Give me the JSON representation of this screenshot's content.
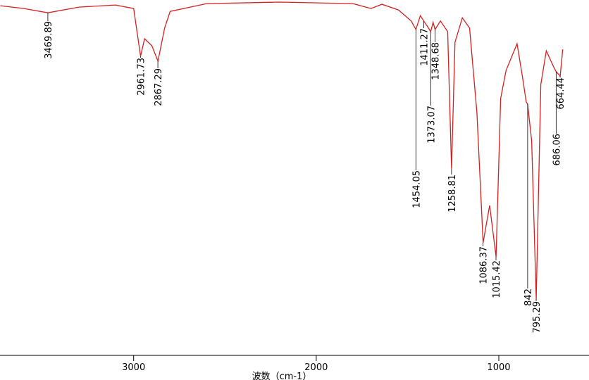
{
  "chart_data": {
    "type": "line",
    "x_label": "波数（cm-1）",
    "xlim": [
      3732,
      506
    ],
    "xticks": [
      3000,
      2000,
      1000
    ],
    "ylim": [
      0,
      100
    ],
    "series": [
      {
        "color": "#d42020",
        "x": [
          3730,
          3600,
          3470,
          3300,
          3100,
          3000,
          2962,
          2940,
          2900,
          2867,
          2830,
          2800,
          2600,
          2200,
          1800,
          1700,
          1640,
          1550,
          1480,
          1454,
          1430,
          1411,
          1390,
          1373,
          1360,
          1349,
          1320,
          1280,
          1259,
          1240,
          1200,
          1160,
          1120,
          1086,
          1050,
          1015,
          990,
          960,
          900,
          870,
          850,
          842,
          820,
          795,
          770,
          740,
          700,
          686,
          664,
          650
        ],
        "values": [
          98.4,
          97.6,
          96.4,
          98,
          98.6,
          97.6,
          84.2,
          89.1,
          87.1,
          82.8,
          92.1,
          96.8,
          99,
          99.4,
          99,
          97.6,
          98.8,
          97.2,
          94.1,
          91.7,
          95.6,
          94.1,
          92.5,
          91.1,
          93.7,
          91.7,
          94.1,
          91.1,
          52.5,
          88.1,
          95,
          92.1,
          68.3,
          31.7,
          42.2,
          27.7,
          72.3,
          80.2,
          87.7,
          78.2,
          71.3,
          70.7,
          60.4,
          15.8,
          76.2,
          85.7,
          81.2,
          79.8,
          78.6,
          86.1
        ]
      }
    ],
    "peaks": [
      3469.89,
      2961.73,
      2867.29,
      1454.05,
      1411.27,
      1373.07,
      1348.68,
      1258.81,
      1086.37,
      1015.42,
      842.0,
      795.29,
      686.06,
      664.44
    ]
  }
}
